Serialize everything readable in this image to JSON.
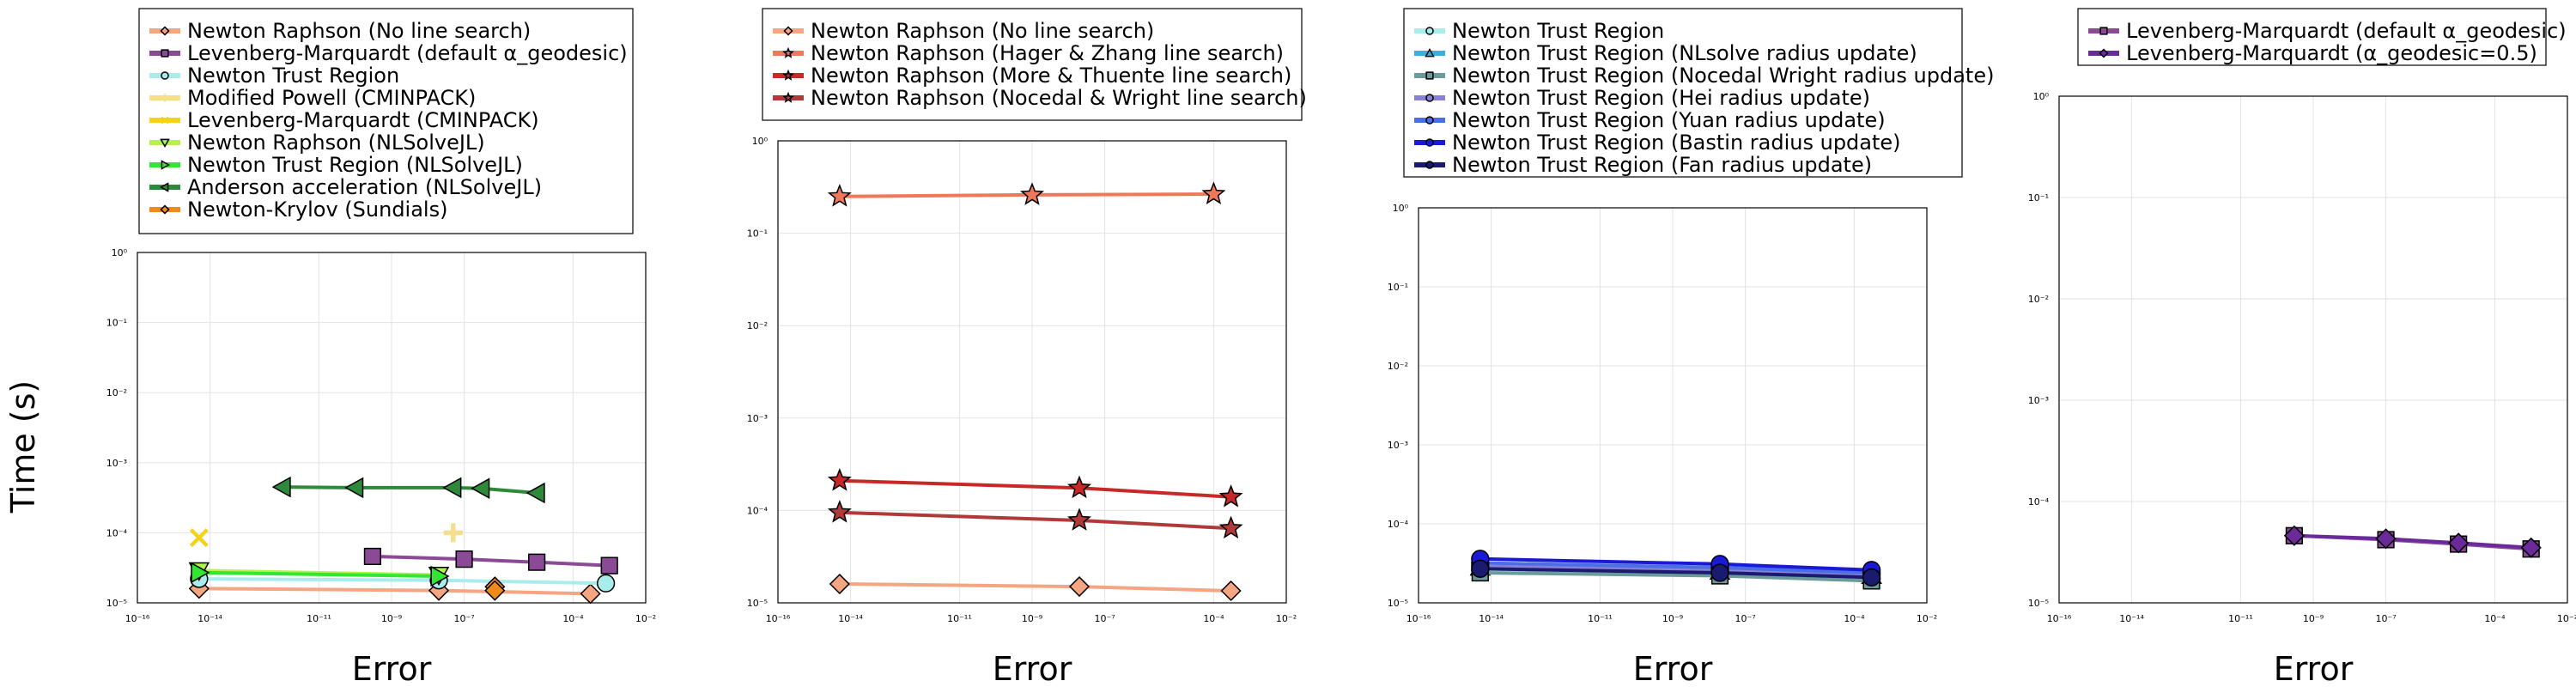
{
  "shared_ylabel": "Time (s)",
  "chart_data": [
    {
      "type": "line",
      "xlabel": "Error",
      "xscale": "log",
      "yscale": "log",
      "xlim": [
        1e-16,
        0.01
      ],
      "ylim": [
        1e-05,
        1
      ],
      "x_ticks": [
        "10⁻¹⁶",
        "10⁻¹⁴",
        "10⁻¹¹",
        "10⁻⁹",
        "10⁻⁷",
        "10⁻⁴",
        "10⁻²"
      ],
      "y_ticks": [
        "10⁻⁵",
        "10⁻⁴",
        "10⁻³",
        "10⁻²",
        "10⁻¹",
        "10⁰"
      ],
      "grid": true,
      "legend_position": "above",
      "series": [
        {
          "name": "Newton Raphson (No line search)",
          "color": "#f4a582",
          "marker": "diamond",
          "points": [
            [
              5e-15,
              1.6e-05
            ],
            [
              2e-08,
              1.5e-05
            ],
            [
              0.0003,
              1.35e-05
            ]
          ]
        },
        {
          "name": "Levenberg-Marquardt (default α_geodesic)",
          "color": "#8b4a96",
          "marker": "square",
          "points": [
            [
              3e-10,
              4.6e-05
            ],
            [
              1e-07,
              4.2e-05
            ],
            [
              1e-05,
              3.8e-05
            ],
            [
              0.001,
              3.4e-05
            ]
          ]
        },
        {
          "name": "Newton Trust Region",
          "color": "#a8ecec",
          "marker": "circle",
          "points": [
            [
              5e-15,
              2.2e-05
            ],
            [
              2e-08,
              2.1e-05
            ],
            [
              0.0008,
              1.9e-05
            ]
          ]
        },
        {
          "name": "Modified Powell (CMINPACK)",
          "color": "#f7dd90",
          "marker": "cross",
          "points": [
            [
              5e-08,
              0.0001
            ]
          ]
        },
        {
          "name": "Levenberg-Marquardt (CMINPACK)",
          "color": "#f2d31a",
          "marker": "x",
          "points": [
            [
              5e-15,
              8.5e-05
            ]
          ]
        },
        {
          "name": "Newton Raphson (NLSolveJL)",
          "color": "#b5f24a",
          "marker": "triangle-down",
          "points": [
            [
              5e-15,
              2.9e-05
            ],
            [
              2e-08,
              2.5e-05
            ]
          ]
        },
        {
          "name": "Newton Trust Region (NLSolveJL)",
          "color": "#33e633",
          "marker": "triangle-right",
          "points": [
            [
              5e-15,
              2.7e-05
            ],
            [
              2e-08,
              2.4e-05
            ]
          ]
        },
        {
          "name": "Anderson acceleration (NLSolveJL)",
          "color": "#2e8a3a",
          "marker": "triangle-left",
          "points": [
            [
              1e-12,
              0.00045
            ],
            [
              1e-10,
              0.00044
            ],
            [
              5e-08,
              0.00044
            ],
            [
              3e-07,
              0.00043
            ],
            [
              1e-05,
              0.00037
            ]
          ]
        },
        {
          "name": "Newton-Krylov (Sundials)",
          "color": "#f08a1a",
          "marker": "diamond",
          "points": [
            [
              7e-07,
              1.7e-05
            ],
            [
              7e-07,
              1.5e-05
            ]
          ]
        }
      ]
    },
    {
      "type": "line",
      "xlabel": "Error",
      "xscale": "log",
      "yscale": "log",
      "xlim": [
        1e-16,
        0.01
      ],
      "ylim": [
        1e-05,
        1
      ],
      "x_ticks": [
        "10⁻¹⁶",
        "10⁻¹⁴",
        "10⁻¹¹",
        "10⁻⁹",
        "10⁻⁷",
        "10⁻⁴",
        "10⁻²"
      ],
      "y_ticks": [
        "10⁻⁵",
        "10⁻⁴",
        "10⁻³",
        "10⁻²",
        "10⁻¹",
        "10⁰"
      ],
      "grid": true,
      "legend_position": "above",
      "series": [
        {
          "name": "Newton Raphson (No line search)",
          "color": "#f4a582",
          "marker": "diamond",
          "points": [
            [
              5e-15,
              1.6e-05
            ],
            [
              2e-08,
              1.5e-05
            ],
            [
              0.0003,
              1.35e-05
            ]
          ]
        },
        {
          "name": "Newton Raphson (Hager & Zhang line search)",
          "color": "#f0785a",
          "marker": "star",
          "points": [
            [
              5e-15,
              0.25
            ],
            [
              1e-09,
              0.26
            ],
            [
              0.0001,
              0.265
            ]
          ]
        },
        {
          "name": "Newton Raphson (More & Thuente line search)",
          "color": "#c82828",
          "marker": "star",
          "points": [
            [
              5e-15,
              0.00021
            ],
            [
              2e-08,
              0.000175
            ],
            [
              0.0003,
              0.00014
            ]
          ]
        },
        {
          "name": "Newton Raphson (Nocedal & Wright line search)",
          "color": "#b03a3a",
          "marker": "star",
          "points": [
            [
              5e-15,
              9.5e-05
            ],
            [
              2e-08,
              7.8e-05
            ],
            [
              0.0003,
              6.4e-05
            ]
          ]
        }
      ]
    },
    {
      "type": "line",
      "xlabel": "Error",
      "xscale": "log",
      "yscale": "log",
      "xlim": [
        1e-16,
        0.01
      ],
      "ylim": [
        1e-05,
        1
      ],
      "x_ticks": [
        "10⁻¹⁶",
        "10⁻¹⁴",
        "10⁻¹¹",
        "10⁻⁹",
        "10⁻⁷",
        "10⁻⁴",
        "10⁻²"
      ],
      "y_ticks": [
        "10⁻⁵",
        "10⁻⁴",
        "10⁻³",
        "10⁻²",
        "10⁻¹",
        "10⁰"
      ],
      "grid": true,
      "legend_position": "above",
      "series": [
        {
          "name": "Newton Trust Region",
          "color": "#a8ecec",
          "marker": "circle",
          "points": [
            [
              5e-15,
              2.6e-05
            ],
            [
              2e-08,
              2.3e-05
            ],
            [
              0.0003,
              2e-05
            ]
          ]
        },
        {
          "name": "Newton Trust Region (NLsolve radius update)",
          "color": "#3aaee6",
          "marker": "triangle-up",
          "points": [
            [
              5e-15,
              2.8e-05
            ],
            [
              2e-08,
              2.5e-05
            ],
            [
              0.0003,
              2.2e-05
            ]
          ]
        },
        {
          "name": "Newton Trust Region (Nocedal Wright radius update)",
          "color": "#6b9a9a",
          "marker": "square",
          "points": [
            [
              5e-15,
              2.4e-05
            ],
            [
              2e-08,
              2.2e-05
            ],
            [
              0.0003,
              1.9e-05
            ]
          ]
        },
        {
          "name": "Newton Trust Region (Hei radius update)",
          "color": "#8a7fd6",
          "marker": "circle",
          "points": [
            [
              5e-15,
              2.9e-05
            ],
            [
              2e-08,
              2.6e-05
            ],
            [
              0.0003,
              2.3e-05
            ]
          ]
        },
        {
          "name": "Newton Trust Region (Yuan radius update)",
          "color": "#4a6ee6",
          "marker": "circle",
          "points": [
            [
              5e-15,
              3.2e-05
            ],
            [
              2e-08,
              2.8e-05
            ],
            [
              0.0003,
              2.4e-05
            ]
          ]
        },
        {
          "name": "Newton Trust Region (Bastin radius update)",
          "color": "#1a1ad6",
          "marker": "circle",
          "points": [
            [
              5e-15,
              3.6e-05
            ],
            [
              2e-08,
              3.1e-05
            ],
            [
              0.0003,
              2.6e-05
            ]
          ]
        },
        {
          "name": "Newton Trust Region (Fan radius update)",
          "color": "#1a1a6e",
          "marker": "circle",
          "points": [
            [
              5e-15,
              2.7e-05
            ],
            [
              2e-08,
              2.4e-05
            ],
            [
              0.0003,
              2.1e-05
            ]
          ]
        }
      ]
    },
    {
      "type": "line",
      "xlabel": "Error",
      "xscale": "log",
      "yscale": "log",
      "xlim": [
        1e-16,
        0.01
      ],
      "ylim": [
        1e-05,
        1
      ],
      "x_ticks": [
        "10⁻¹⁶",
        "10⁻¹⁴",
        "10⁻¹¹",
        "10⁻⁹",
        "10⁻⁷",
        "10⁻⁴",
        "10⁻²"
      ],
      "y_ticks": [
        "10⁻⁵",
        "10⁻⁴",
        "10⁻³",
        "10⁻²",
        "10⁻¹",
        "10⁰"
      ],
      "grid": true,
      "legend_position": "above",
      "series": [
        {
          "name": "Levenberg-Marquardt (default α_geodesic)",
          "color": "#8b4a96",
          "marker": "square",
          "points": [
            [
              3e-10,
              4.6e-05
            ],
            [
              1e-07,
              4.2e-05
            ],
            [
              1e-05,
              3.8e-05
            ],
            [
              0.001,
              3.4e-05
            ]
          ]
        },
        {
          "name": "Levenberg-Marquardt (α_geodesic=0.5)",
          "color": "#6a2a9a",
          "marker": "diamond",
          "points": [
            [
              3e-10,
              4.6e-05
            ],
            [
              1e-07,
              4.3e-05
            ],
            [
              1e-05,
              3.9e-05
            ],
            [
              0.001,
              3.5e-05
            ]
          ]
        }
      ]
    }
  ]
}
